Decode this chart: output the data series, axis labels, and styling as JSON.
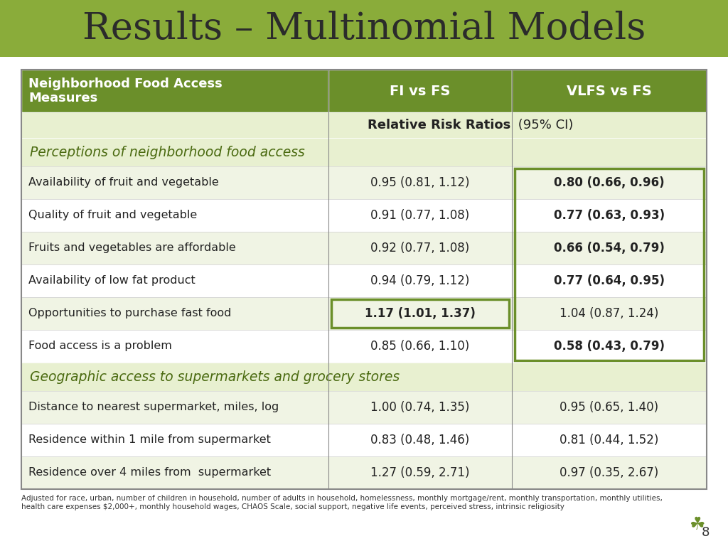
{
  "title": "Results – Multinomial Models",
  "title_bg_color": "#8aac3a",
  "title_text_color": "#2b2b2b",
  "header_bg_color": "#6b8f2a",
  "header_text_color": "#ffffff",
  "subheader_bg_color": "#e8f0d0",
  "section_bg_color": "#d4e4a0",
  "row_bg_even": "#f5f5f5",
  "row_bg_odd": "#ffffff",
  "highlight_border_color": "#6b8f2a",
  "highlight_text_color": "#2b5a0a",
  "normal_text_color": "#222222",
  "col1_header": "Neighborhood Food Access\nMeasures",
  "col2_header": "FI vs FS",
  "col3_header": "VLFS vs FS",
  "subheader": "Relative Risk Ratios (95% CI)",
  "section1_label": "Perceptions of neighborhood food access",
  "section2_label": "Geographic access to supermarkets and grocery stores",
  "rows": [
    {
      "label": "Availability of fruit and vegetable",
      "fi": "0.95 (0.81, 1.12)",
      "vlfs": "0.80 (0.66, 0.96)",
      "fi_bold": false,
      "vlfs_bold": true,
      "fi_box": false,
      "vlfs_box": true
    },
    {
      "label": "Quality of fruit and vegetable",
      "fi": "0.91 (0.77, 1.08)",
      "vlfs": "0.77 (0.63, 0.93)",
      "fi_bold": false,
      "vlfs_bold": true,
      "fi_box": false,
      "vlfs_box": true
    },
    {
      "label": "Fruits and vegetables are affordable",
      "fi": "0.92 (0.77, 1.08)",
      "vlfs": "0.66 (0.54, 0.79)",
      "fi_bold": false,
      "vlfs_bold": true,
      "fi_box": false,
      "vlfs_box": true
    },
    {
      "label": "Availability of low fat product",
      "fi": "0.94 (0.79, 1.12)",
      "vlfs": "0.77 (0.64, 0.95)",
      "fi_bold": false,
      "vlfs_bold": true,
      "fi_box": false,
      "vlfs_box": true
    },
    {
      "label": "Opportunities to purchase fast food",
      "fi": "1.17 (1.01, 1.37)",
      "vlfs": "1.04 (0.87, 1.24)",
      "fi_bold": true,
      "vlfs_bold": false,
      "fi_box": true,
      "vlfs_box": false
    },
    {
      "label": "Food access is a problem",
      "fi": "0.85 (0.66, 1.10)",
      "vlfs": "0.58 (0.43, 0.79)",
      "fi_bold": false,
      "vlfs_bold": true,
      "fi_box": false,
      "vlfs_box": true
    }
  ],
  "rows2": [
    {
      "label": "Distance to nearest supermarket, miles, log",
      "fi": "1.00 (0.74, 1.35)",
      "vlfs": "0.95 (0.65, 1.40)",
      "fi_bold": false,
      "vlfs_bold": false,
      "fi_box": false,
      "vlfs_box": false
    },
    {
      "label": "Residence within 1 mile from supermarket",
      "fi": "0.83 (0.48, 1.46)",
      "vlfs": "0.81 (0.44, 1.52)",
      "fi_bold": false,
      "vlfs_bold": false,
      "fi_box": false,
      "vlfs_box": false
    },
    {
      "label": "Residence over 4 miles from  supermarket",
      "fi": "1.27 (0.59, 2.71)",
      "vlfs": "0.97 (0.35, 2.67)",
      "fi_bold": false,
      "vlfs_bold": false,
      "fi_box": false,
      "vlfs_box": false
    }
  ],
  "footnote": "Adjusted for race, urban, number of children in household, number of adults in household, homelessness, monthly mortgage/rent, monthly transportation, monthly utilities,\nhealth care expenses $2,000+, monthly household wages, CHAOS Scale, social support, negative life events, perceived stress, intrinsic religiosity",
  "page_number": "8",
  "bg_color": "#ffffff"
}
